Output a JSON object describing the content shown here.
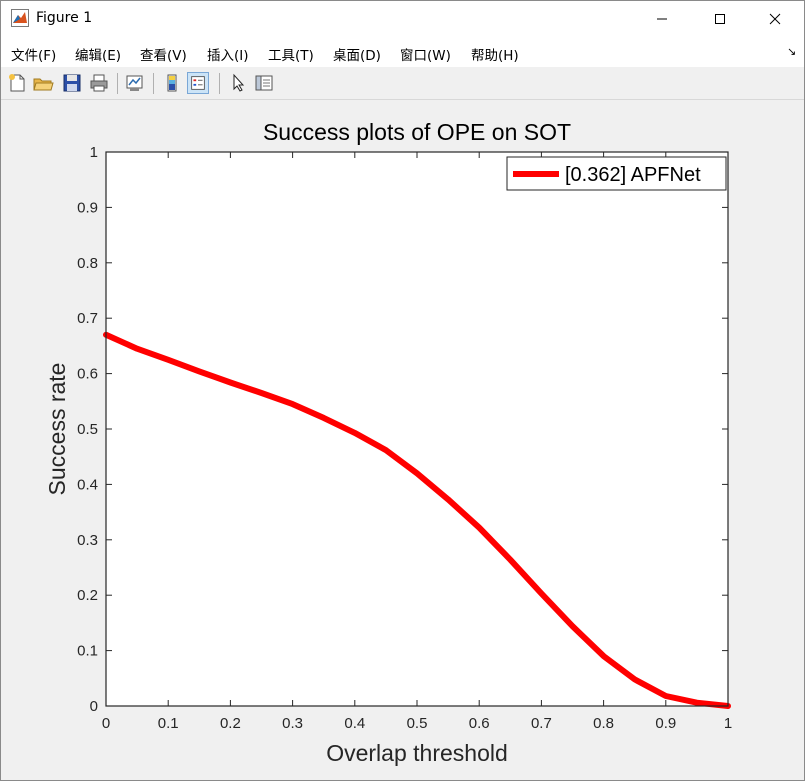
{
  "window": {
    "title": "Figure 1",
    "minimize": "—",
    "maximize": "☐",
    "close": "✕"
  },
  "menu": {
    "items": [
      "文件(F)",
      "编辑(E)",
      "查看(V)",
      "插入(I)",
      "工具(T)",
      "桌面(D)",
      "窗口(W)",
      "帮助(H)"
    ],
    "overflow": "↘"
  },
  "toolbar": {
    "icons": [
      "new-figure-icon",
      "open-file-icon",
      "save-icon",
      "print-icon",
      "link-plot-icon",
      "colorbar-icon",
      "legend-icon",
      "pointer-icon",
      "property-inspector-icon"
    ]
  },
  "chart_data": {
    "type": "line",
    "title": "Success plots of OPE on SOT",
    "xlabel": "Overlap threshold",
    "ylabel": "Success rate",
    "xlim": [
      0,
      1
    ],
    "ylim": [
      0,
      1
    ],
    "xticks": [
      "0",
      "0.1",
      "0.2",
      "0.3",
      "0.4",
      "0.5",
      "0.6",
      "0.7",
      "0.8",
      "0.9",
      "1"
    ],
    "yticks": [
      "0",
      "0.1",
      "0.2",
      "0.3",
      "0.4",
      "0.5",
      "0.6",
      "0.7",
      "0.8",
      "0.9",
      "1"
    ],
    "grid": false,
    "legend": "top-right",
    "series": [
      {
        "name": "[0.362] APFNet",
        "color": "#ff0000",
        "x": [
          0,
          0.05,
          0.1,
          0.15,
          0.2,
          0.25,
          0.3,
          0.35,
          0.4,
          0.45,
          0.5,
          0.55,
          0.6,
          0.65,
          0.7,
          0.75,
          0.8,
          0.85,
          0.9,
          0.95,
          1
        ],
        "y": [
          0.67,
          0.645,
          0.625,
          0.604,
          0.584,
          0.565,
          0.545,
          0.52,
          0.493,
          0.462,
          0.42,
          0.373,
          0.322,
          0.264,
          0.203,
          0.144,
          0.09,
          0.048,
          0.018,
          0.006,
          0.0
        ]
      }
    ]
  }
}
